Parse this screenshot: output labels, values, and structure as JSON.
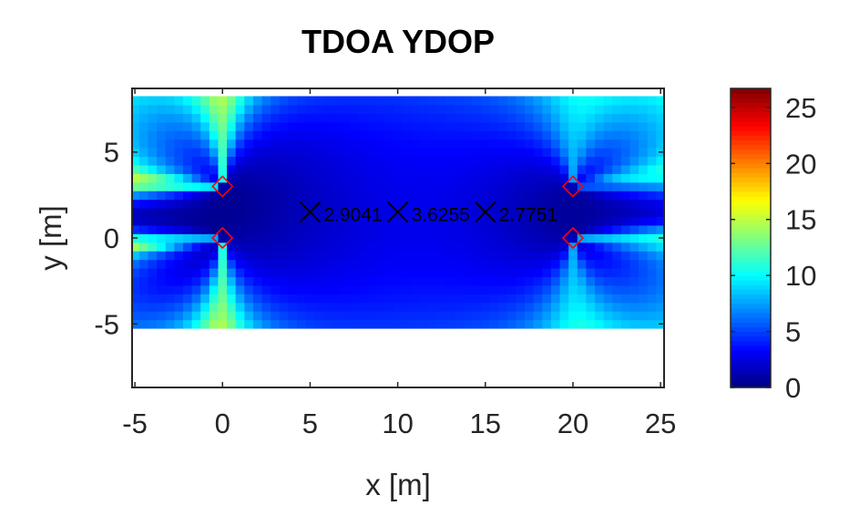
{
  "chart_data": {
    "type": "heatmap",
    "title": "TDOA YDOP",
    "xlabel": "x [m]",
    "ylabel": "y [m]",
    "xlim": [
      -5.16,
      25.2
    ],
    "ylim": [
      -8.7,
      8.7
    ],
    "xticks": [
      -5,
      0,
      5,
      10,
      15,
      20,
      25
    ],
    "yticks": [
      -5,
      0,
      5
    ],
    "grid": false,
    "colormap": "jet",
    "clim": [
      0,
      26.7
    ],
    "colorbar": {
      "ticks": [
        0,
        5,
        10,
        15,
        20,
        25
      ],
      "placement": "right"
    },
    "field_grid": {
      "x": [
        -5,
        25
      ],
      "y": [
        -5,
        8
      ],
      "step": 0.5
    },
    "anchors": [
      [
        0,
        0
      ],
      [
        0,
        3
      ],
      [
        20,
        0
      ],
      [
        20,
        3
      ]
    ],
    "anchor_color": "#ff0000",
    "points": [
      {
        "x": 5,
        "y": 1.5,
        "label": "2.9041"
      },
      {
        "x": 10,
        "y": 1.5,
        "label": "3.6255"
      },
      {
        "x": 15,
        "y": 1.5,
        "label": "2.7751"
      }
    ]
  }
}
